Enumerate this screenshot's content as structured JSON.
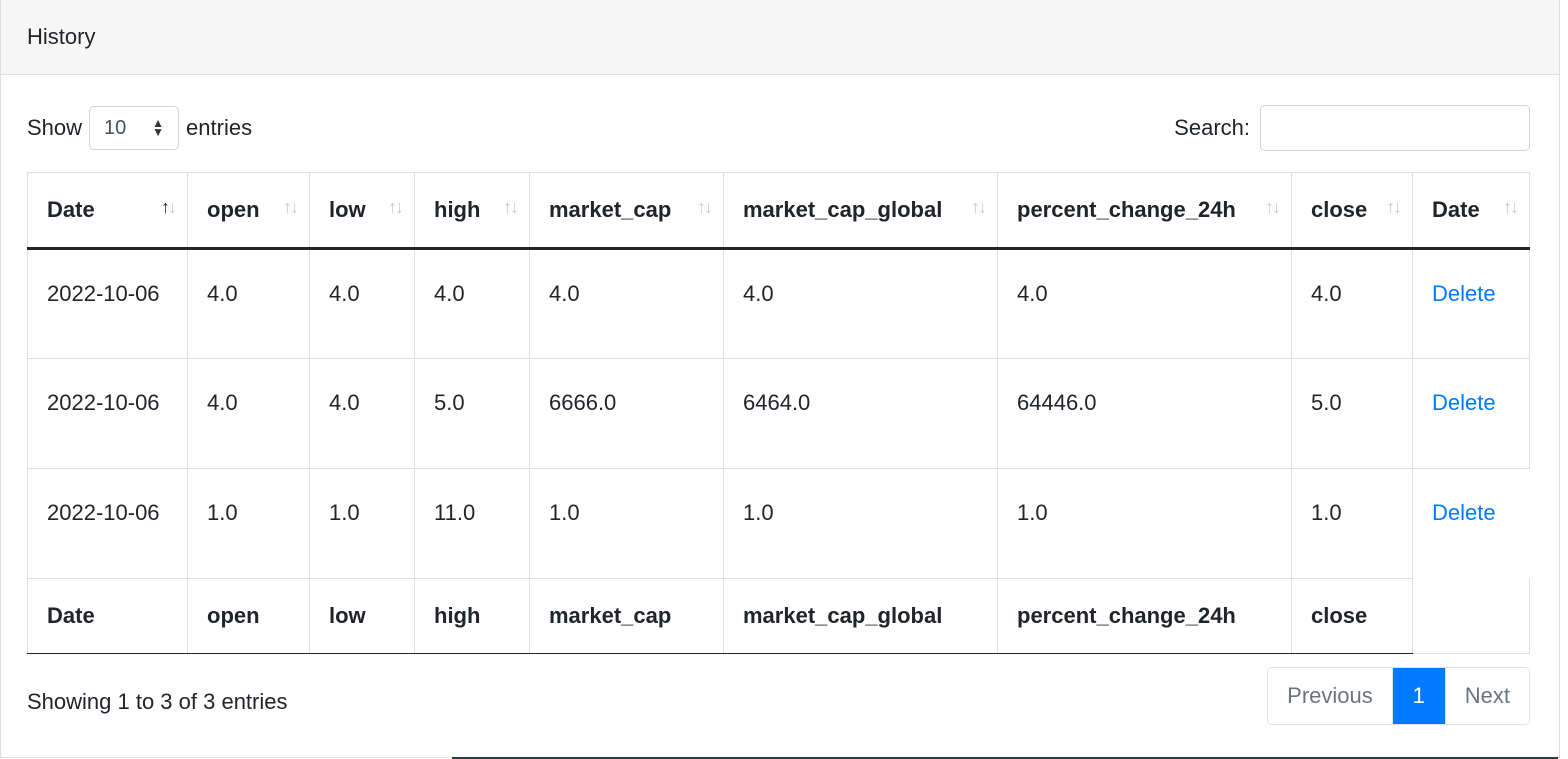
{
  "header": {
    "title": "History"
  },
  "controls": {
    "show_label": "Show",
    "page_length": "10",
    "entries_label": "entries",
    "search_label": "Search:",
    "search_value": ""
  },
  "table": {
    "columns": [
      "Date",
      "open",
      "low",
      "high",
      "market_cap",
      "market_cap_global",
      "percent_change_24h",
      "close",
      "Date"
    ],
    "sorted_column": "Date",
    "rows": [
      {
        "date": "2022-10-06",
        "open": "4.0",
        "low": "4.0",
        "high": "4.0",
        "market_cap": "4.0",
        "market_cap_global": "4.0",
        "percent_change_24h": "4.0",
        "close": "4.0",
        "action": "Delete"
      },
      {
        "date": "2022-10-06",
        "open": "4.0",
        "low": "4.0",
        "high": "5.0",
        "market_cap": "6666.0",
        "market_cap_global": "6464.0",
        "percent_change_24h": "64446.0",
        "close": "5.0",
        "action": "Delete"
      },
      {
        "date": "2022-10-06",
        "open": "1.0",
        "low": "1.0",
        "high": "11.0",
        "market_cap": "1.0",
        "market_cap_global": "1.0",
        "percent_change_24h": "1.0",
        "close": "1.0",
        "action": "Delete"
      }
    ],
    "footer_columns": [
      "Date",
      "open",
      "low",
      "high",
      "market_cap",
      "market_cap_global",
      "percent_change_24h",
      "close"
    ]
  },
  "footer": {
    "info": "Showing 1 to 3 of 3 entries",
    "pagination": {
      "previous": "Previous",
      "current": "1",
      "next": "Next"
    }
  },
  "colors": {
    "link": "#007bff",
    "active_page": "#007bff",
    "header_bg": "#f7f7f7"
  },
  "icons": {
    "sort": "sort-arrows-icon",
    "select": "updown-caret-icon"
  }
}
